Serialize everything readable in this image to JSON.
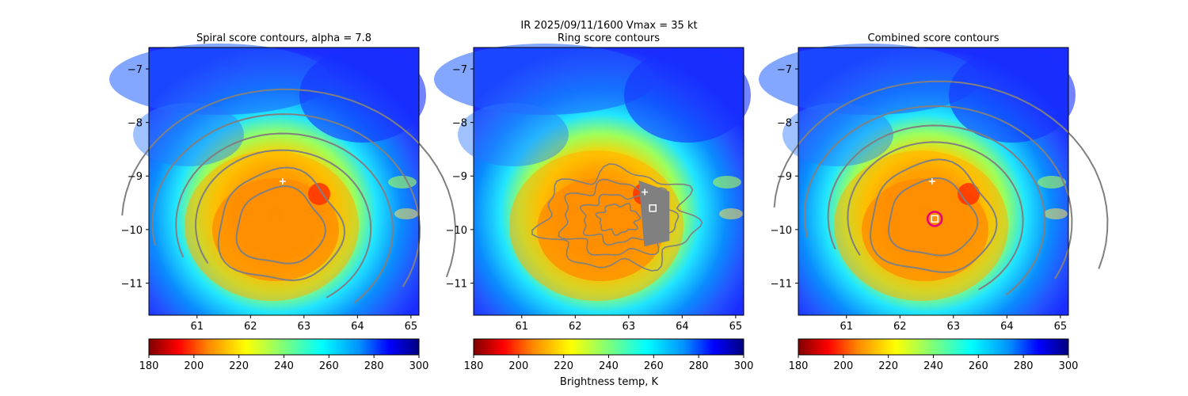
{
  "figure": {
    "suptitle_line1": "IR  2025/09/11/1600    Vmax = 35 kt",
    "colorbar_label": "Brightness temp, K"
  },
  "chart_data": [
    {
      "type": "heatmap",
      "title": "Spiral score contours, alpha =  7.8",
      "xlim": [
        60.1,
        65.15
      ],
      "ylim": [
        -11.6,
        -6.6
      ],
      "xticks": [
        "61",
        "62",
        "63",
        "64",
        "65"
      ],
      "yticks": [
        "−7",
        "−8",
        "−9",
        "−10",
        "−11"
      ],
      "xtick_values": [
        61,
        62,
        63,
        64,
        65
      ],
      "ytick_values": [
        -7,
        -8,
        -9,
        -10,
        -11
      ],
      "colormap": "jet_r",
      "clim": [
        180,
        300
      ],
      "colorbar_ticks": [
        "180",
        "200",
        "220",
        "240",
        "260",
        "280",
        "300"
      ],
      "contour_color": "#808080",
      "contour_centre": [
        62.55,
        -9.95
      ],
      "marker_plus": [
        62.6,
        -9.1
      ],
      "marker_square": null,
      "marker_circle": null
    },
    {
      "type": "heatmap",
      "title": "Ring score contours",
      "xlim": [
        60.1,
        65.15
      ],
      "ylim": [
        -11.6,
        -6.6
      ],
      "xticks": [
        "61",
        "62",
        "63",
        "64",
        "65"
      ],
      "yticks": [
        "−7",
        "−8",
        "−9",
        "−10",
        "−11"
      ],
      "xtick_values": [
        61,
        62,
        63,
        64,
        65
      ],
      "ytick_values": [
        -7,
        -8,
        -9,
        -10,
        -11
      ],
      "colormap": "jet_r",
      "clim": [
        180,
        300
      ],
      "colorbar_ticks": [
        "180",
        "200",
        "220",
        "240",
        "260",
        "280",
        "300"
      ],
      "contour_color": "#808080",
      "ring_patch_centre": [
        63.4,
        -9.8
      ],
      "marker_plus": [
        63.3,
        -9.3
      ],
      "marker_square": [
        63.45,
        -9.6
      ],
      "marker_circle": null
    },
    {
      "type": "heatmap",
      "title": "Combined score contours",
      "xlim": [
        60.1,
        65.15
      ],
      "ylim": [
        -11.6,
        -6.6
      ],
      "xticks": [
        "61",
        "62",
        "63",
        "64",
        "65"
      ],
      "yticks": [
        "−7",
        "−8",
        "−9",
        "−10",
        "−11"
      ],
      "xtick_values": [
        61,
        62,
        63,
        64,
        65
      ],
      "ytick_values": [
        -7,
        -8,
        -9,
        -10,
        -11
      ],
      "colormap": "jet_r",
      "clim": [
        180,
        300
      ],
      "colorbar_ticks": [
        "180",
        "200",
        "220",
        "240",
        "260",
        "280",
        "300"
      ],
      "contour_color": "#808080",
      "contour_centre": [
        62.6,
        -9.8
      ],
      "marker_plus": [
        62.6,
        -9.1
      ],
      "marker_square": [
        62.65,
        -9.8
      ],
      "marker_circle": [
        62.65,
        -9.8
      ],
      "circle_color": "#e6007a"
    }
  ]
}
